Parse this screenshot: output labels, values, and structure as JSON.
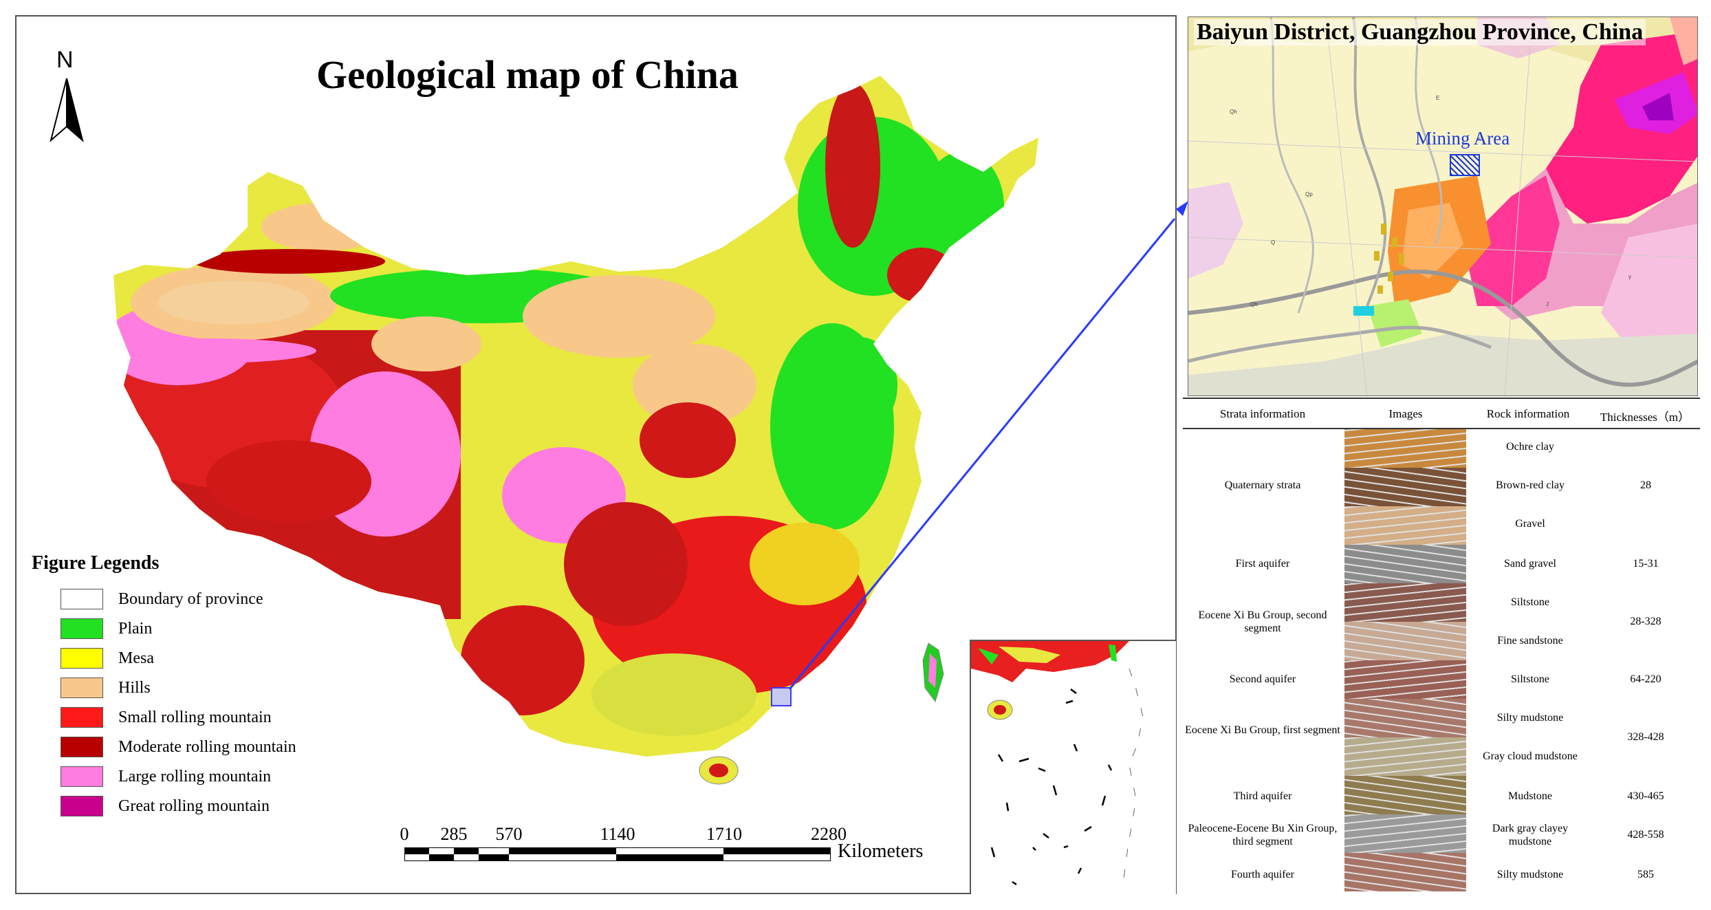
{
  "main_map": {
    "title": "Geological map of China",
    "north_label": "N"
  },
  "legend": {
    "title": "Figure Legends",
    "items": [
      {
        "label": "Boundary of province",
        "color": "#ffffff"
      },
      {
        "label": "Plain",
        "color": "#22e022"
      },
      {
        "label": "Mesa",
        "color": "#ffff00"
      },
      {
        "label": "Hills",
        "color": "#f8c88a"
      },
      {
        "label": "Small rolling mountain",
        "color": "#ff1a1a"
      },
      {
        "label": "Moderate rolling mountain",
        "color": "#b80000"
      },
      {
        "label": "Large rolling mountain",
        "color": "#ff7de0"
      },
      {
        "label": "Great rolling mountain",
        "color": "#c8008c"
      }
    ]
  },
  "scale": {
    "ticks": [
      "0",
      "285",
      "570",
      "1140",
      "1710",
      "2280"
    ],
    "unit": "Kilometers"
  },
  "detail_map": {
    "title": "Baiyun District, Guangzhou Province, China",
    "mining_label": "Mining Area"
  },
  "strata_table": {
    "headers": [
      "Strata information",
      "Images",
      "Rock information",
      "Thicknesses（m）"
    ],
    "rows": [
      {
        "rock": "Ochre clay",
        "img_color": "#c8893e"
      },
      {
        "rock": "Brown-red clay",
        "img_color": "#7a5238"
      },
      {
        "rock": "Gravel",
        "img_color": "#d4ae86"
      },
      {
        "rock": "Sand gravel",
        "img_color": "#8c8c8c"
      },
      {
        "rock": "Siltstone",
        "img_color": "#8a5a4e"
      },
      {
        "rock": "Fine sandstone",
        "img_color": "#c8a994"
      },
      {
        "rock": "Siltstone",
        "img_color": "#9a6055"
      },
      {
        "rock": "Silty mudstone",
        "img_color": "#a8786a"
      },
      {
        "rock": "Gray cloud mudstone",
        "img_color": "#b6ac8c"
      },
      {
        "rock": "Mudstone",
        "img_color": "#8e7c4e"
      },
      {
        "rock": "Dark gray clayey mudstone",
        "img_color": "#9a9a9a"
      },
      {
        "rock": "Silty mudstone",
        "img_color": "#a87466"
      }
    ],
    "strata": [
      {
        "name": "Quaternary strata",
        "thickness": "28"
      },
      {
        "name": "First aquifer",
        "thickness": "15-31"
      },
      {
        "name": "Eocene Xi Bu Group, second segment",
        "thickness": "28-328"
      },
      {
        "name": "Second aquifer",
        "thickness": "64-220"
      },
      {
        "name": "Eocene Xi Bu Group, first segment",
        "thickness": "328-428"
      },
      {
        "name": "Third aquifer",
        "thickness": "430-465"
      },
      {
        "name": "Paleocene-Eocene Bu Xin Group, third segment",
        "thickness": "428-558"
      },
      {
        "name": "Fourth aquifer",
        "thickness": "585"
      }
    ]
  }
}
